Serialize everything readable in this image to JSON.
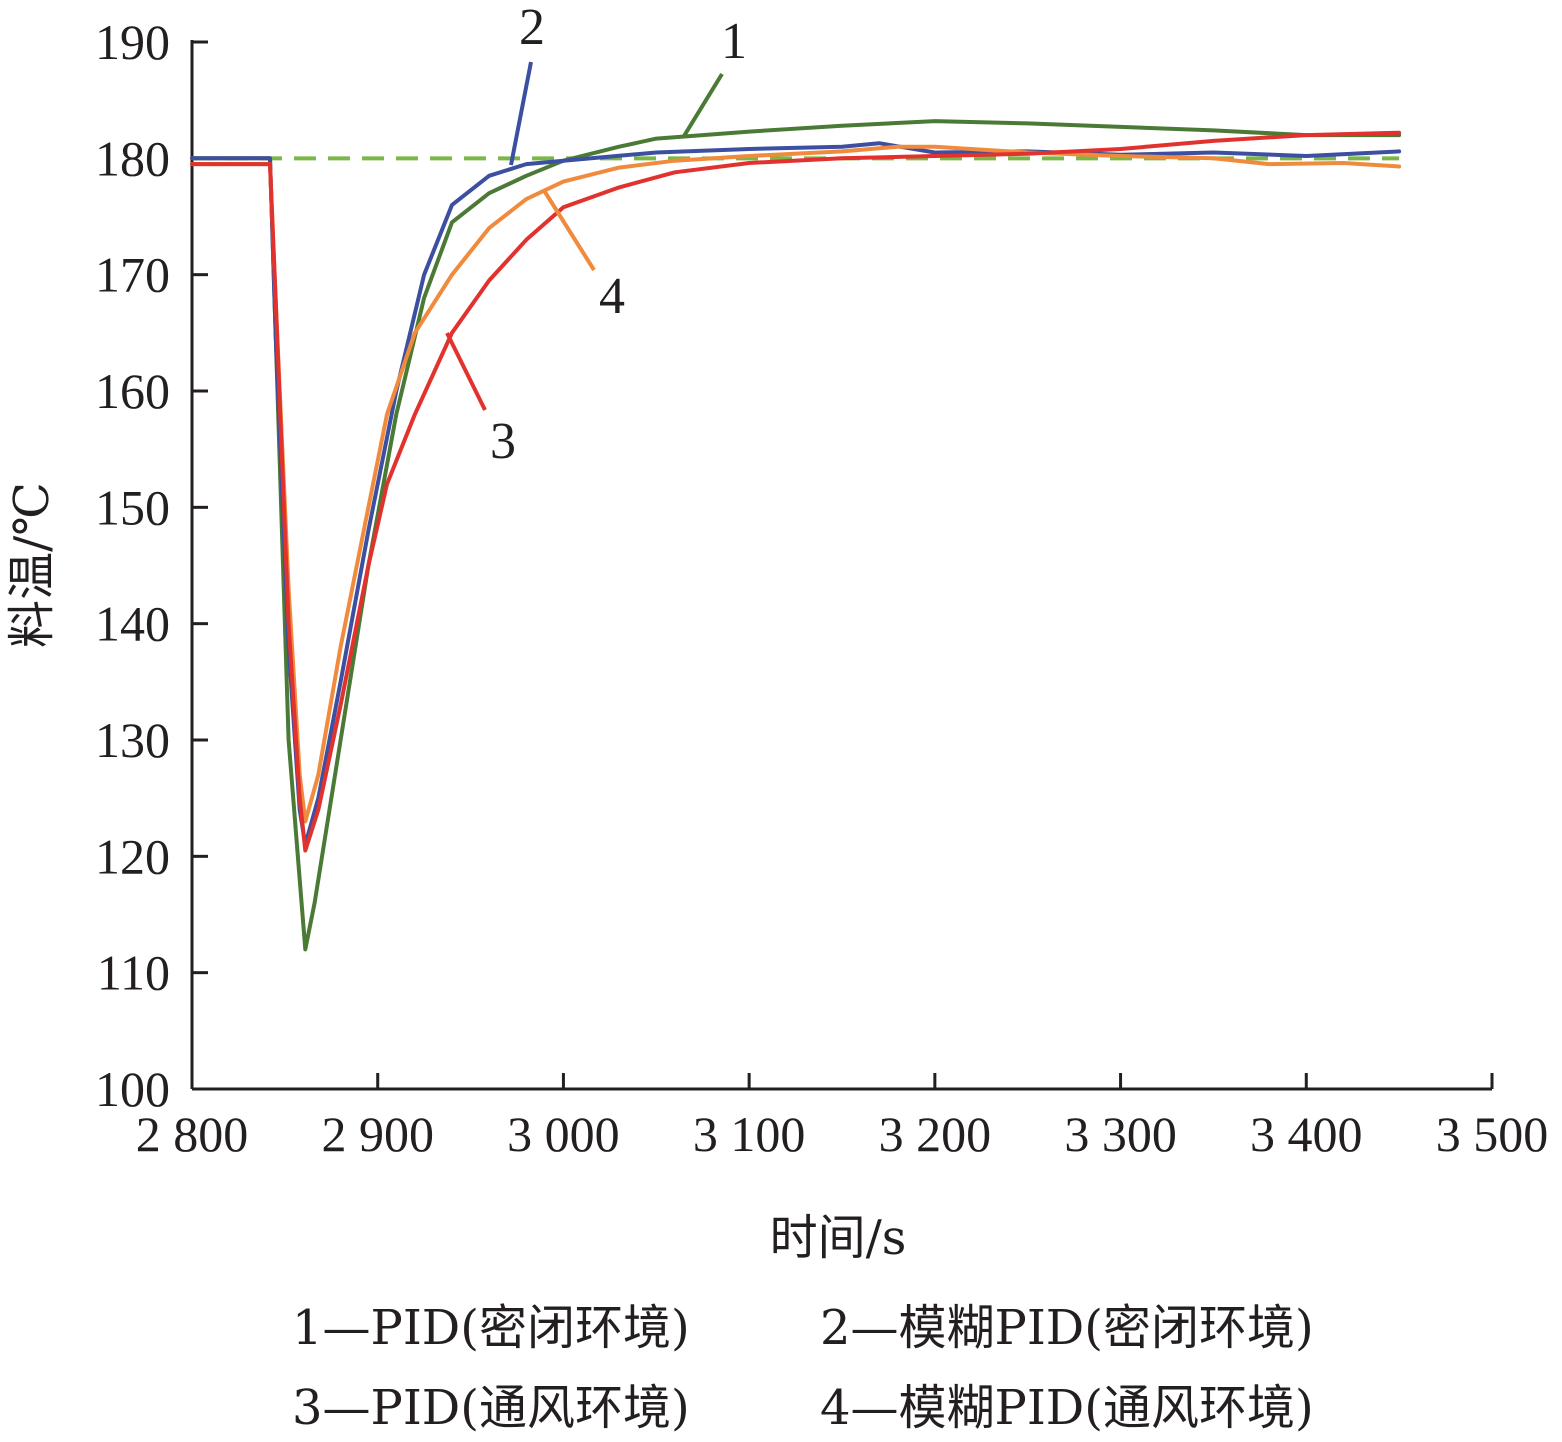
{
  "chart_data": {
    "type": "line",
    "title": "",
    "xlabel": "时间/s",
    "ylabel": "料温/℃",
    "xlim": [
      2800,
      3500
    ],
    "ylim": [
      100,
      190
    ],
    "x_ticks": [
      2800,
      2900,
      3000,
      3100,
      3200,
      3300,
      3400,
      3500
    ],
    "x_tick_labels": [
      "2 800",
      "2 900",
      "3 000",
      "3 100",
      "3 200",
      "3 300",
      "3 400",
      "3 500"
    ],
    "y_ticks": [
      100,
      110,
      120,
      130,
      140,
      150,
      160,
      170,
      180,
      190
    ],
    "y_tick_labels": [
      "100",
      "110",
      "120",
      "130",
      "140",
      "150",
      "160",
      "170",
      "180",
      "190"
    ],
    "grid": false,
    "legend_position": "bottom",
    "legend": [
      "1—PID(密闭环境)",
      "2—模糊PID(密闭环境)",
      "3—PID(通风环境)",
      "4—模糊PID(通风环境)"
    ],
    "setpoint": {
      "y": 180,
      "color": "#7ab648",
      "style": "dashed"
    },
    "series": [
      {
        "name": "1—PID(密闭环境)",
        "label": "1",
        "color": "#4a7a35",
        "points": [
          [
            2800,
            180
          ],
          [
            2842,
            180
          ],
          [
            2845,
            165
          ],
          [
            2852,
            130
          ],
          [
            2858,
            118
          ],
          [
            2861,
            112
          ],
          [
            2866,
            116
          ],
          [
            2878,
            128
          ],
          [
            2895,
            145
          ],
          [
            2910,
            158
          ],
          [
            2925,
            168
          ],
          [
            2940,
            174.5
          ],
          [
            2960,
            177
          ],
          [
            2980,
            178.5
          ],
          [
            3000,
            179.8
          ],
          [
            3030,
            181
          ],
          [
            3050,
            181.7
          ],
          [
            3100,
            182.3
          ],
          [
            3150,
            182.8
          ],
          [
            3200,
            183.2
          ],
          [
            3250,
            183
          ],
          [
            3300,
            182.7
          ],
          [
            3350,
            182.4
          ],
          [
            3400,
            182
          ],
          [
            3450,
            182
          ]
        ]
      },
      {
        "name": "2—模糊PID(密闭环境)",
        "label": "2",
        "color": "#3c4fa0",
        "points": [
          [
            2800,
            180
          ],
          [
            2842,
            180
          ],
          [
            2845,
            165
          ],
          [
            2852,
            138
          ],
          [
            2858,
            124
          ],
          [
            2861,
            121
          ],
          [
            2868,
            125
          ],
          [
            2880,
            135
          ],
          [
            2895,
            148
          ],
          [
            2910,
            160
          ],
          [
            2925,
            170
          ],
          [
            2940,
            176
          ],
          [
            2960,
            178.5
          ],
          [
            2980,
            179.5
          ],
          [
            3000,
            179.8
          ],
          [
            3050,
            180.5
          ],
          [
            3100,
            180.8
          ],
          [
            3150,
            181
          ],
          [
            3170,
            181.3
          ],
          [
            3200,
            180.5
          ],
          [
            3250,
            180.6
          ],
          [
            3300,
            180.3
          ],
          [
            3350,
            180.5
          ],
          [
            3400,
            180.2
          ],
          [
            3450,
            180.6
          ]
        ]
      },
      {
        "name": "3—PID(通风环境)",
        "label": "3",
        "color": "#e1322d",
        "points": [
          [
            2800,
            179.5
          ],
          [
            2842,
            179.5
          ],
          [
            2845,
            168
          ],
          [
            2852,
            140
          ],
          [
            2858,
            125
          ],
          [
            2861,
            120.5
          ],
          [
            2868,
            124
          ],
          [
            2880,
            133
          ],
          [
            2895,
            145
          ],
          [
            2905,
            152
          ],
          [
            2920,
            158
          ],
          [
            2940,
            165
          ],
          [
            2960,
            169.5
          ],
          [
            2980,
            173
          ],
          [
            3000,
            175.8
          ],
          [
            3030,
            177.5
          ],
          [
            3060,
            178.8
          ],
          [
            3100,
            179.6
          ],
          [
            3150,
            180
          ],
          [
            3200,
            180.2
          ],
          [
            3250,
            180.4
          ],
          [
            3300,
            180.8
          ],
          [
            3350,
            181.5
          ],
          [
            3400,
            182
          ],
          [
            3450,
            182.2
          ]
        ]
      },
      {
        "name": "4—模糊PID(通风环境)",
        "label": "4",
        "color": "#f08a3c",
        "points": [
          [
            2800,
            179.5
          ],
          [
            2842,
            179.5
          ],
          [
            2845,
            168
          ],
          [
            2852,
            143
          ],
          [
            2858,
            127
          ],
          [
            2861,
            123
          ],
          [
            2868,
            127
          ],
          [
            2880,
            138
          ],
          [
            2895,
            150
          ],
          [
            2905,
            158
          ],
          [
            2920,
            165
          ],
          [
            2940,
            170
          ],
          [
            2960,
            174
          ],
          [
            2980,
            176.5
          ],
          [
            3000,
            178
          ],
          [
            3030,
            179.2
          ],
          [
            3060,
            179.8
          ],
          [
            3100,
            180.2
          ],
          [
            3150,
            180.6
          ],
          [
            3180,
            181
          ],
          [
            3200,
            181
          ],
          [
            3250,
            180.5
          ],
          [
            3300,
            180.2
          ],
          [
            3350,
            180
          ],
          [
            3380,
            179.5
          ],
          [
            3420,
            179.6
          ],
          [
            3450,
            179.3
          ]
        ]
      }
    ]
  }
}
